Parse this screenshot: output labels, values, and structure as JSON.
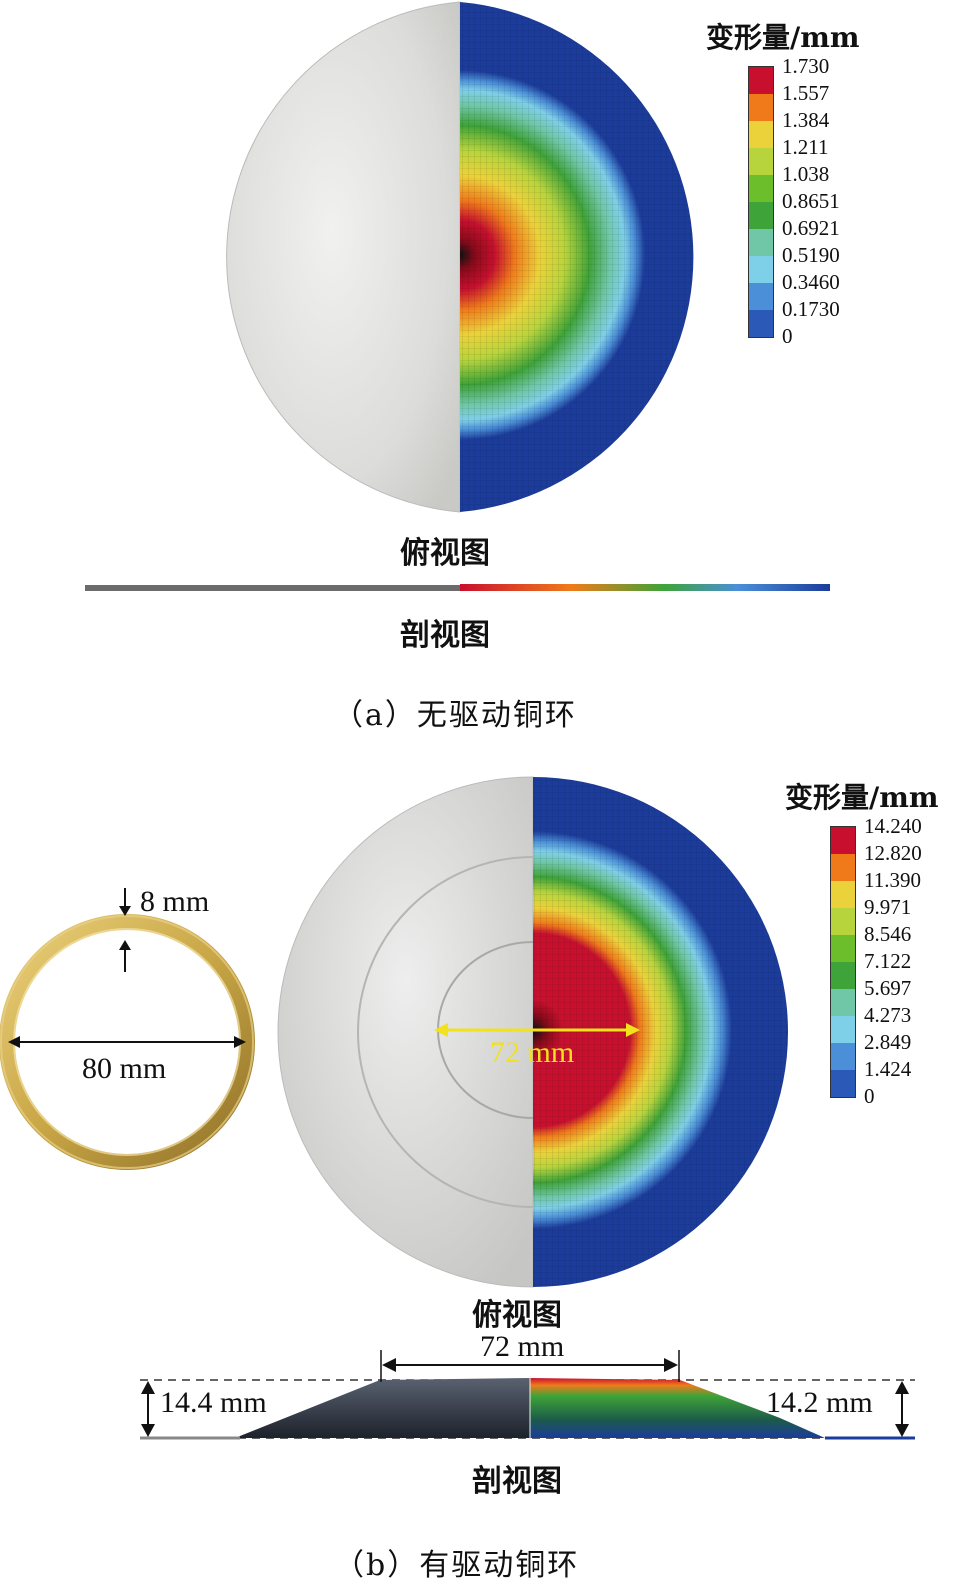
{
  "panel_a": {
    "legend_title": "变形量/mm",
    "legend_ticks": [
      "1.730",
      "1.557",
      "1.384",
      "1.211",
      "1.038",
      "0.8651",
      "0.6921",
      "0.5190",
      "0.3460",
      "0.1730",
      "0"
    ],
    "top_view_label": "俯视图",
    "section_view_label": "剖视图",
    "caption": "（a）无驱动铜环"
  },
  "panel_b": {
    "legend_title": "变形量/mm",
    "legend_ticks": [
      "14.240",
      "12.820",
      "11.390",
      "9.971",
      "8.546",
      "7.122",
      "5.697",
      "4.273",
      "2.849",
      "1.424",
      "0"
    ],
    "top_view_label": "俯视图",
    "section_view_label": "剖视图",
    "caption": "（b）有驱动铜环",
    "ring_thickness": "8 mm",
    "ring_diameter": "80 mm",
    "dome_diameter": "72 mm",
    "section_width": "72 mm",
    "left_height": "14.4 mm",
    "right_height": "14.2 mm"
  },
  "colors": {
    "scale": [
      "#c8102e",
      "#f07a1a",
      "#ecd23a",
      "#b8d43c",
      "#6cbf2a",
      "#3ea338",
      "#6fc7a8",
      "#7ecfe8",
      "#4a8fd8",
      "#2b59b8",
      "#1a3a9a"
    ],
    "mesh_blue": "#1b3c9c",
    "metal": "#d9d9d6",
    "gold": "#c9a646",
    "dimension_yellow": "#f1e21d"
  }
}
